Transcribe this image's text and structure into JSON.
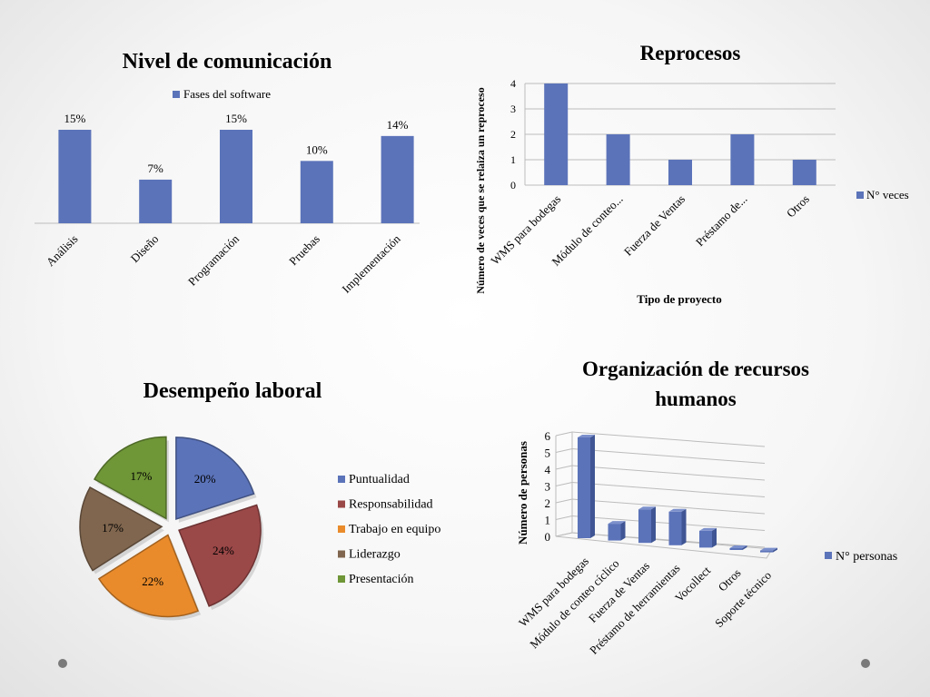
{
  "colors": {
    "bar": "#5b73b9",
    "bar_top": "#7c90cc",
    "bar_side": "#3f5594",
    "pie": [
      "#5b73b9",
      "#9b4848",
      "#e98b2b",
      "#80664e",
      "#6f9637"
    ],
    "grid": "#bcbcbc"
  },
  "chart_data": [
    {
      "type": "bar",
      "title": "Nivel de comunicación",
      "categories": [
        "Análisis",
        "Diseño",
        "Programación",
        "Pruebas",
        "Implementación"
      ],
      "series": [
        {
          "name": "Fases del software",
          "values": [
            15,
            7,
            15,
            10,
            14
          ]
        }
      ],
      "data_labels": [
        "15%",
        "7%",
        "15%",
        "10%",
        "14%"
      ],
      "ylim": [
        0,
        15
      ],
      "legend": "top",
      "grid": false
    },
    {
      "type": "bar",
      "title": "Reprocesos",
      "categories": [
        "WMS para bodegas",
        "Módulo de conteo...",
        "Fuerza de Ventas",
        "Préstamo de...",
        "Otros"
      ],
      "series": [
        {
          "name": "N° veces",
          "values": [
            4,
            2,
            1,
            2,
            1
          ]
        }
      ],
      "xlabel": "Tipo de proyecto",
      "ylabel": "Número de veces que se relaiza un reproceso",
      "yticks": [
        "0",
        "1",
        "2",
        "3",
        "4"
      ],
      "ylim": [
        0,
        4
      ],
      "legend": "right",
      "grid": true
    },
    {
      "type": "pie",
      "title": "Desempeño laboral",
      "categories": [
        "Puntualidad",
        "Responsabilidad",
        "Trabajo en equipo",
        "Liderazgo",
        "Presentación"
      ],
      "values": [
        20,
        24,
        22,
        17,
        17
      ],
      "data_labels": [
        "20%",
        "24%",
        "22%",
        "17%",
        "17%"
      ],
      "legend": "right"
    },
    {
      "type": "bar",
      "title": "Organización de recursos humanos",
      "categories": [
        "WMS para bodegas",
        "Módulo de conteo cíclico",
        "Fuerza de Ventas",
        "Préstamo de herramientas",
        "Vocollect",
        "Otros",
        "Soporte técnico"
      ],
      "series": [
        {
          "name": "N° personas",
          "values": [
            6,
            1,
            2,
            2,
            1,
            0,
            0
          ]
        }
      ],
      "ylabel": "Número de personas",
      "yticks": [
        "0",
        "1",
        "2",
        "3",
        "4",
        "5",
        "6"
      ],
      "ylim": [
        0,
        6
      ],
      "legend": "right",
      "grid": true
    }
  ]
}
